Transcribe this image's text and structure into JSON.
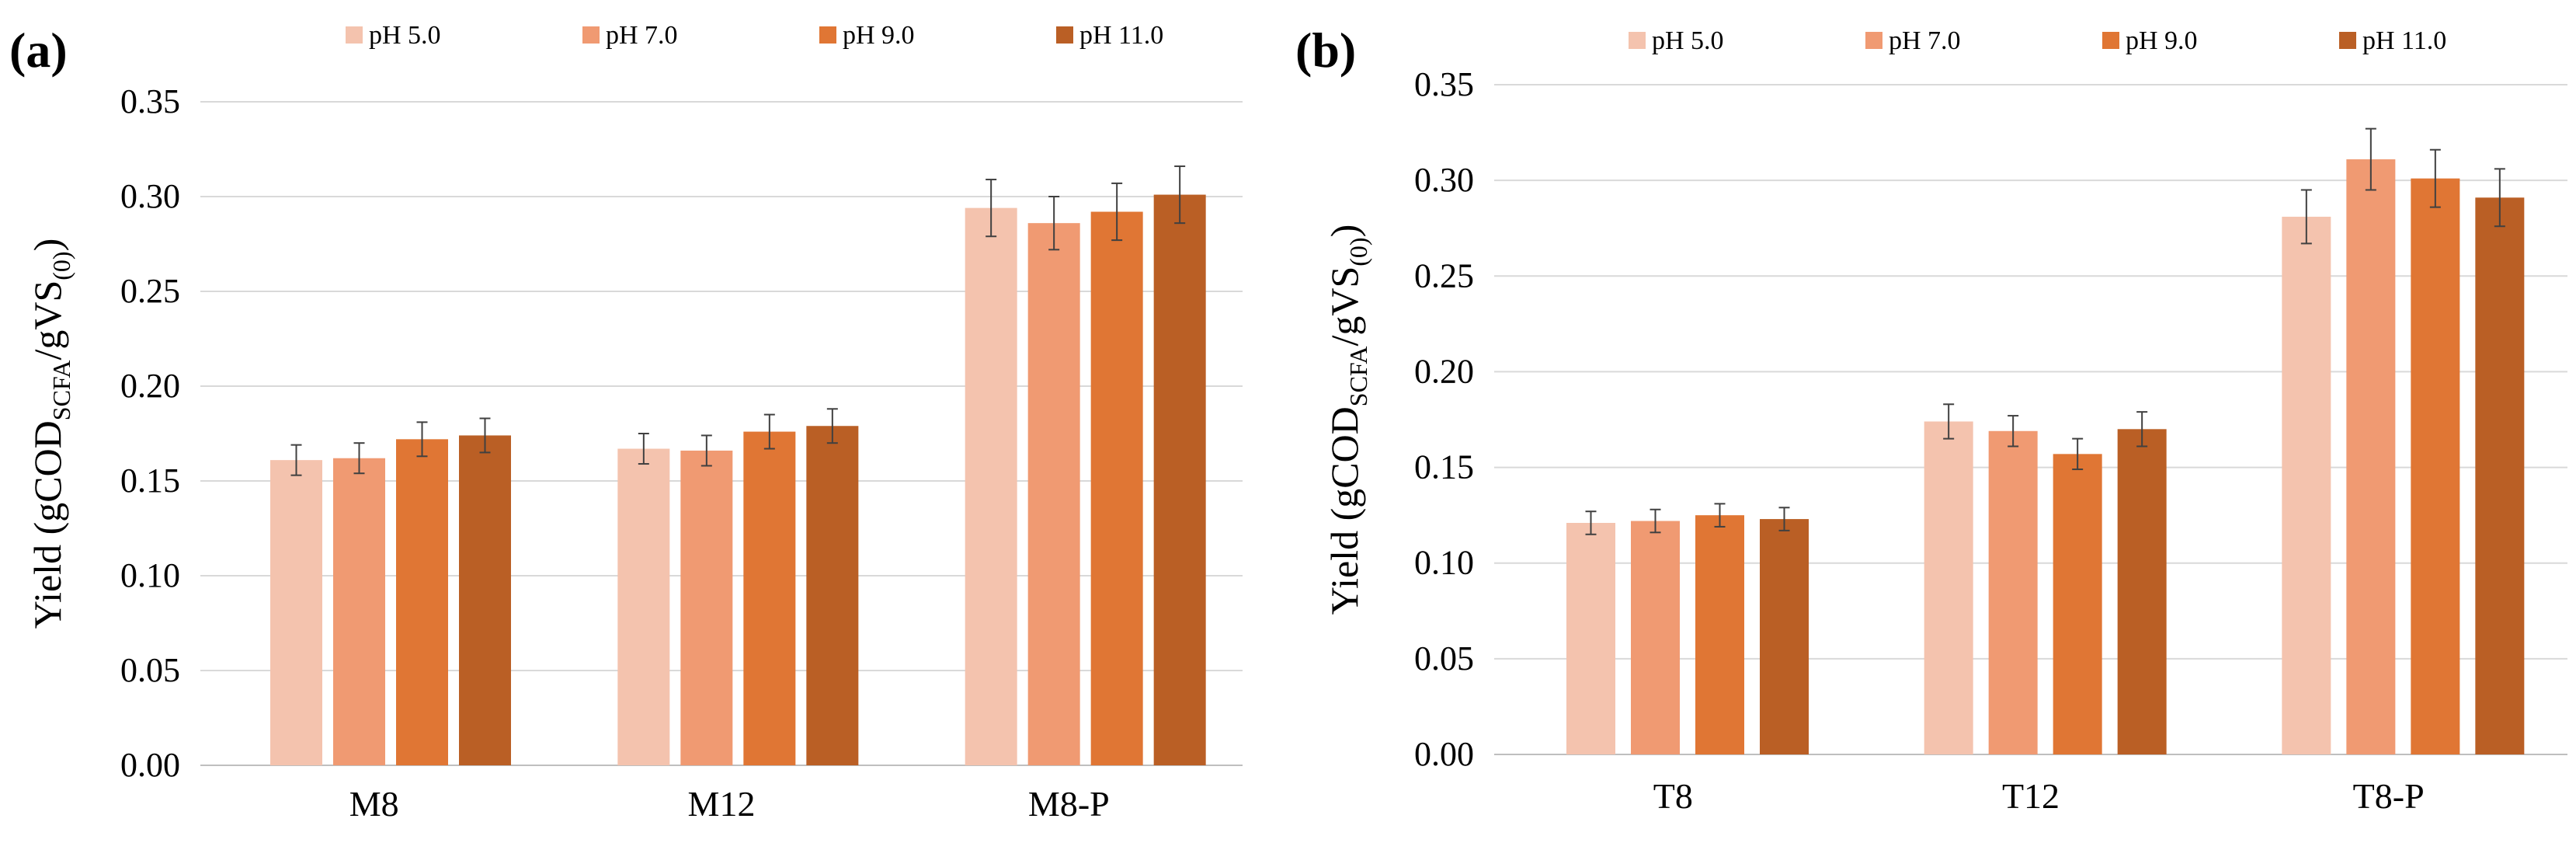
{
  "chart_data": [
    {
      "type": "bar",
      "panel_label": "(a)",
      "title": "",
      "xlabel": "",
      "ylabel": {
        "main": "Yield (gCOD",
        "sub1": "SCFA",
        "mid": "/gVS",
        "sub2": "(0)",
        "end": ")"
      },
      "ylim": [
        0,
        0.35
      ],
      "yticks": [
        "0.00",
        "0.05",
        "0.10",
        "0.15",
        "0.20",
        "0.25",
        "0.30",
        "0.35"
      ],
      "grid": true,
      "legend_position": "top-center",
      "categories": [
        "M8",
        "M12",
        "M8-P"
      ],
      "series": [
        {
          "name": "pH 5.0",
          "color": "#F4C3AE",
          "values": [
            0.161,
            0.167,
            0.294
          ],
          "errors": [
            0.008,
            0.008,
            0.015
          ]
        },
        {
          "name": "pH 7.0",
          "color": "#F09A72",
          "values": [
            0.162,
            0.166,
            0.286
          ],
          "errors": [
            0.008,
            0.008,
            0.014
          ]
        },
        {
          "name": "pH 9.0",
          "color": "#E07634",
          "values": [
            0.172,
            0.176,
            0.292
          ],
          "errors": [
            0.009,
            0.009,
            0.015
          ]
        },
        {
          "name": "pH 11.0",
          "color": "#BA5F25",
          "values": [
            0.174,
            0.179,
            0.301
          ],
          "errors": [
            0.009,
            0.009,
            0.015
          ]
        }
      ]
    },
    {
      "type": "bar",
      "panel_label": "(b)",
      "title": "",
      "xlabel": "",
      "ylabel": {
        "main": "Yield (gCOD",
        "sub1": "SCFA",
        "mid": "/gVS",
        "sub2": "(0)",
        "end": ")"
      },
      "ylim": [
        0,
        0.35
      ],
      "yticks": [
        "0.00",
        "0.05",
        "0.10",
        "0.15",
        "0.20",
        "0.25",
        "0.30",
        "0.35"
      ],
      "grid": true,
      "legend_position": "top-center",
      "categories": [
        "T8",
        "T12",
        "T8-P"
      ],
      "series": [
        {
          "name": "pH 5.0",
          "color": "#F4C3AE",
          "values": [
            0.121,
            0.174,
            0.281
          ],
          "errors": [
            0.006,
            0.009,
            0.014
          ]
        },
        {
          "name": "pH 7.0",
          "color": "#F09A72",
          "values": [
            0.122,
            0.169,
            0.311
          ],
          "errors": [
            0.006,
            0.008,
            0.016
          ]
        },
        {
          "name": "pH 9.0",
          "color": "#E07634",
          "values": [
            0.125,
            0.157,
            0.301
          ],
          "errors": [
            0.006,
            0.008,
            0.015
          ]
        },
        {
          "name": "pH 11.0",
          "color": "#BA5F25",
          "values": [
            0.123,
            0.17,
            0.291
          ],
          "errors": [
            0.006,
            0.009,
            0.015
          ]
        }
      ]
    }
  ]
}
